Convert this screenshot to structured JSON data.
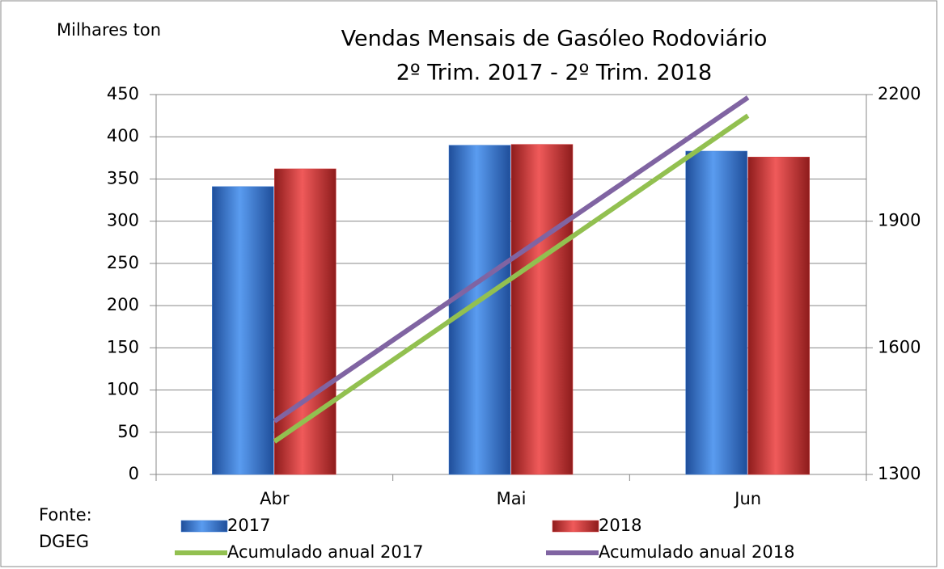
{
  "chart_data": {
    "type": "bar",
    "title": "Vendas  Mensais de Gasóleo Rodoviário",
    "subtitle": "2º Trim. 2017 - 2º Trim. 2018",
    "ylabel": "Milhares ton",
    "annotations": [
      "Fonte:",
      "DGEG"
    ],
    "categories": [
      "Abr",
      "Mai",
      "Jun"
    ],
    "series": [
      {
        "name": "2017",
        "type": "bar",
        "color": "#3f7fd6",
        "values": [
          341,
          390,
          383
        ]
      },
      {
        "name": "2018",
        "type": "bar",
        "color": "#d63c3c",
        "values": [
          362,
          391,
          376
        ]
      },
      {
        "name": "Acumulado anual 2017",
        "type": "line",
        "axis": "y2",
        "color": "#92c050",
        "values": [
          1378,
          1764,
          2150
        ]
      },
      {
        "name": "Acumulado anual 2018",
        "type": "line",
        "axis": "y2",
        "color": "#8064a2",
        "values": [
          1426,
          1810,
          2193
        ]
      }
    ],
    "ylim": [
      0,
      450
    ],
    "yticks": [
      0,
      50,
      100,
      150,
      200,
      250,
      300,
      350,
      400,
      450
    ],
    "y2lim": [
      1300,
      2200
    ],
    "y2ticks": [
      1300,
      1600,
      1900,
      2200
    ],
    "grid": true
  }
}
